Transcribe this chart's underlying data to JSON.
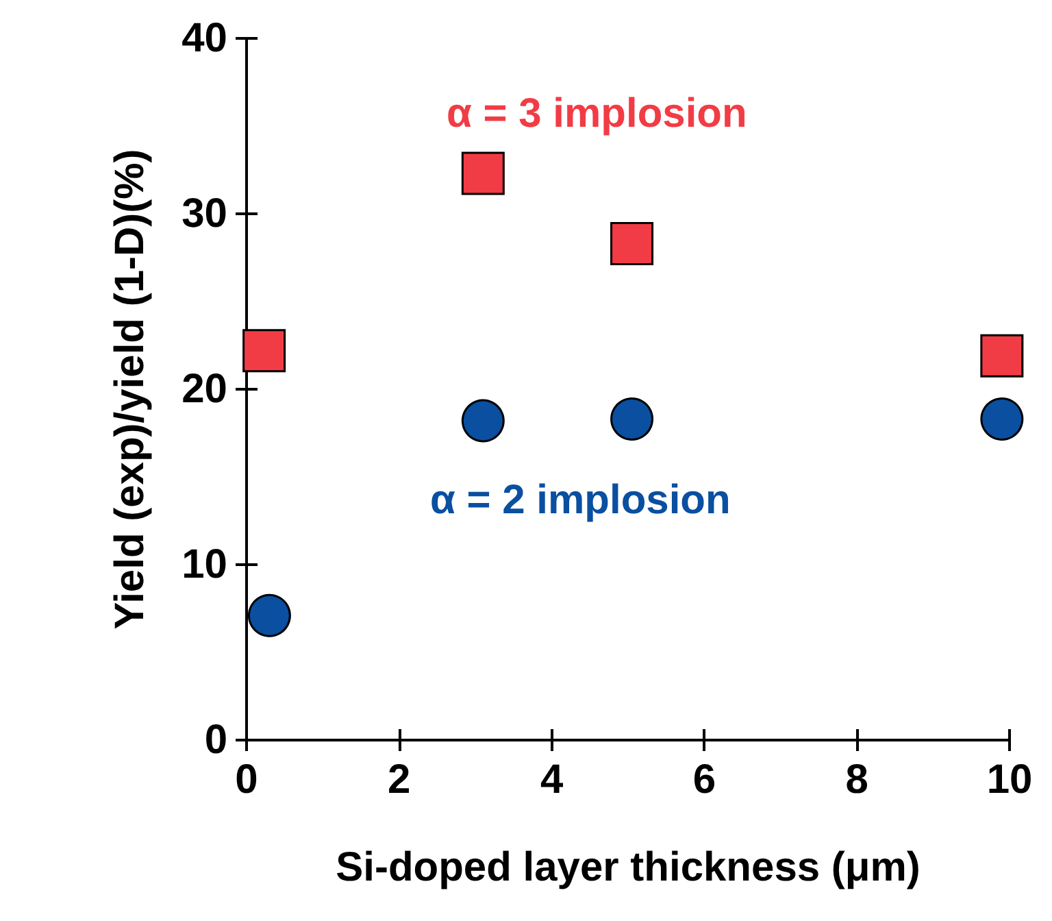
{
  "chart_data": {
    "type": "scatter",
    "xlabel": "Si-doped layer thickness (μm)",
    "ylabel": "Yield (exp)/yield (1-D)(%)",
    "xlim": [
      0,
      10
    ],
    "xticks": [
      0,
      2,
      4,
      6,
      8,
      10
    ],
    "ylim": [
      0,
      40
    ],
    "yticks": [
      0,
      10,
      20,
      30,
      40
    ],
    "grid": false,
    "legend": false,
    "series": [
      {
        "name": "α = 3 implosion",
        "color": "#f23c45",
        "marker": "square",
        "x": [
          0.23,
          3.1,
          5.05,
          9.9
        ],
        "values": [
          22.2,
          32.3,
          28.3,
          21.9
        ]
      },
      {
        "name": "α = 2 implosion",
        "color": "#0a4fa0",
        "marker": "circle",
        "x": [
          0.3,
          3.1,
          5.05,
          9.9
        ],
        "values": [
          7.1,
          18.2,
          18.3,
          18.3
        ]
      }
    ]
  }
}
